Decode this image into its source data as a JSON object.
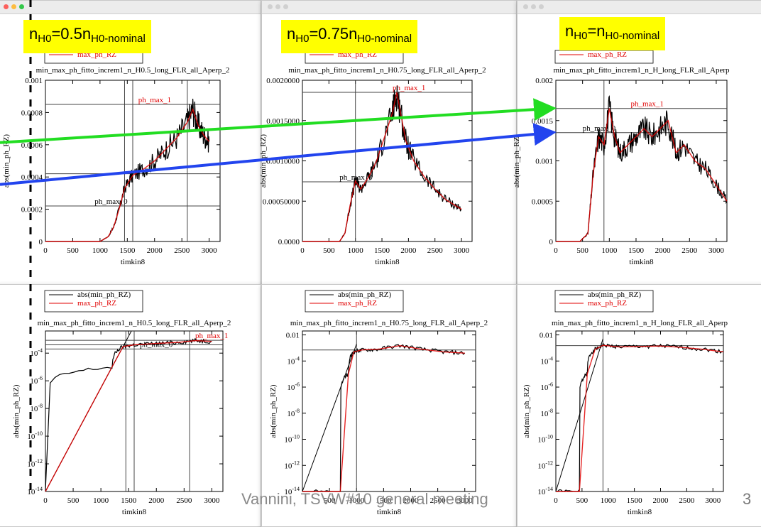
{
  "footer": {
    "text": "Vannini, TSVW#10 general meeting",
    "page": "3"
  },
  "highlights": [
    {
      "pre": "n",
      "sub1": "H0",
      "mid": "=0.5n",
      "sub2": "H0-nominal"
    },
    {
      "pre": "n",
      "sub1": "H0",
      "mid": "=0.75n",
      "sub2": "H0-nominal"
    },
    {
      "pre": "n",
      "sub1": "H0",
      "mid": "=n",
      "sub2": "H0-nominal"
    }
  ],
  "chart_data": [
    {
      "type": "line",
      "title": "min_max_ph_fitto_increm1_n_H0.5_long_FLR_all_Aperp_2",
      "xlabel": "timkin8",
      "ylabel": "abs(min_ph_RZ)",
      "xlim": [
        0,
        3200
      ],
      "ylim": [
        0,
        0.001
      ],
      "xticks": [
        0,
        500,
        1000,
        1500,
        2000,
        2500,
        3000
      ],
      "yticks": [
        0,
        0.0002,
        0.0004,
        0.0006,
        0.0008,
        0.001
      ],
      "ytick_labels": [
        "0",
        "0.0002",
        "0.0004",
        "0.0006",
        "0.0008",
        "0.001"
      ],
      "legend": [
        "max_ph_RZ"
      ],
      "series": [
        {
          "name": "max_ph_RZ",
          "x": [
            0,
            1000,
            1150,
            1250,
            1350,
            1450,
            1600,
            1800,
            2000,
            2200,
            2400,
            2600,
            2700,
            2800,
            2900,
            3000
          ],
          "y": [
            0,
            0,
            3e-05,
            9e-05,
            0.0002,
            0.00033,
            0.00041,
            0.00045,
            0.0005,
            0.00057,
            0.00064,
            0.00074,
            0.00082,
            0.00072,
            0.00066,
            0.00062
          ]
        }
      ],
      "hlines": [
        {
          "label": "ph_max_1",
          "y": 0.00085
        },
        {
          "label": "",
          "y": 0.00042
        },
        {
          "label": "ph_max_0",
          "y": 0.00022
        }
      ],
      "vlines": [
        1450,
        1600,
        2600
      ]
    },
    {
      "type": "line",
      "title": "min_max_ph_fitto_increm1_n_H0.75_long_FLR_all_Aperp_2",
      "xlabel": "timkin8",
      "ylabel": "abs(min_ph_RZ)",
      "xlim": [
        0,
        3200
      ],
      "ylim": [
        0,
        0.002
      ],
      "xticks": [
        0,
        500,
        1000,
        1500,
        2000,
        2500,
        3000
      ],
      "yticks": [
        0,
        0.0005,
        0.001,
        0.0015,
        0.002
      ],
      "ytick_labels": [
        "0.0000",
        "0.00050000",
        "0.0010000",
        "0.0015000",
        "0.0020000"
      ],
      "legend": [
        "max_ph_RZ"
      ],
      "series": [
        {
          "name": "max_ph_RZ",
          "x": [
            0,
            700,
            800,
            900,
            1000,
            1100,
            1250,
            1400,
            1550,
            1700,
            1780,
            1850,
            1950,
            2100,
            2300,
            2500,
            2700,
            2900,
            3000
          ],
          "y": [
            0,
            0,
            0.0001,
            0.00045,
            0.00075,
            0.00065,
            0.0008,
            0.001,
            0.0013,
            0.0016,
            0.00185,
            0.0016,
            0.00125,
            0.001,
            0.0008,
            0.00065,
            0.00052,
            0.00044,
            0.0004
          ]
        }
      ],
      "hlines": [
        {
          "label": "ph_max_1",
          "y": 0.00185
        },
        {
          "label": "ph_max_0",
          "y": 0.00074
        }
      ],
      "vlines": [
        1000
      ]
    },
    {
      "type": "line",
      "title": "min_max_ph_fitto_increm1_n_H_long_FLR_all_Aperp",
      "xlabel": "timkin8",
      "ylabel": "abs(min_ph_RZ)",
      "xlim": [
        0,
        3200
      ],
      "ylim": [
        0,
        0.002
      ],
      "xticks": [
        0,
        500,
        1000,
        1500,
        2000,
        2500,
        3000
      ],
      "yticks": [
        0,
        0.0005,
        0.001,
        0.0015,
        0.002
      ],
      "ytick_labels": [
        "0",
        "0.0005",
        "0.001",
        "0.0015",
        "0.002"
      ],
      "legend": [
        "max_ph_RZ"
      ],
      "series": [
        {
          "name": "max_ph_RZ",
          "x": [
            0,
            450,
            600,
            700,
            800,
            900,
            1000,
            1100,
            1200,
            1350,
            1500,
            1650,
            1800,
            1950,
            2100,
            2250,
            2400,
            2600,
            2800,
            3000,
            3200
          ],
          "y": [
            0,
            0,
            0.0001,
            0.00085,
            0.0013,
            0.0012,
            0.00165,
            0.0013,
            0.0011,
            0.0012,
            0.0013,
            0.0014,
            0.0013,
            0.0014,
            0.0015,
            0.0011,
            0.0012,
            0.001,
            0.0009,
            0.0007,
            0.0005
          ]
        }
      ],
      "hlines": [
        {
          "label": "ph_max_1",
          "y": 0.00165
        },
        {
          "label": "ph_max_0",
          "y": 0.00135
        }
      ],
      "vlines": [
        900
      ]
    },
    {
      "type": "line",
      "yscale": "log",
      "title": "min_max_ph_fitto_increm1_n_H0.5_long_FLR_all_Aperp_2",
      "xlabel": "timkin8",
      "ylabel": "abs(min_ph_RZ)",
      "xlim": [
        0,
        3200
      ],
      "ylim": [
        1e-14,
        0.004
      ],
      "xticks": [
        0,
        500,
        1000,
        1500,
        2000,
        2500,
        3000
      ],
      "xtick_labels": [
        "0",
        "500",
        "1000",
        "1500",
        "2000",
        "2500",
        "3000"
      ],
      "yticks": [
        1e-14,
        1e-12,
        1e-10,
        1e-08,
        1e-06,
        0.0001
      ],
      "ytick_labels": [
        "10^-14",
        "10^-12",
        "10^-10",
        "10^-8",
        "10^-6",
        "10^-4"
      ],
      "legend": [
        "abs(min_ph_RZ)",
        "max_ph_RZ"
      ],
      "series": [
        {
          "name": "max_ph_RZ",
          "x": [
            0,
            1200,
            1400,
            1600,
            2000,
            2400,
            2700,
            3000
          ],
          "y": [
            1e-14,
            1e-05,
            0.0003,
            0.0004,
            0.0005,
            0.0006,
            0.0008,
            0.0007
          ]
        }
      ],
      "fit_line": {
        "x": [
          0,
          1550
        ],
        "y": [
          1e-14,
          0.004
        ]
      },
      "hlines": [
        {
          "label": "ph_max_1",
          "y": 0.00085
        },
        {
          "label": "",
          "y": 0.0004
        },
        {
          "label": "ph_max_0",
          "y": 0.0002
        }
      ],
      "vlines": [
        1450,
        1600,
        2600
      ]
    },
    {
      "type": "line",
      "yscale": "log",
      "title": "min_max_ph_fitto_increm1_n_H0.75_long_FLR_all_Aperp_2",
      "xlabel": "timkin8",
      "ylabel": "abs(min_ph_RZ)",
      "xlim": [
        0,
        3200
      ],
      "ylim": [
        1e-14,
        0.02
      ],
      "xticks": [
        0,
        500,
        1000,
        1500,
        2000,
        2500,
        3000
      ],
      "xtick_labels": [
        "",
        "500",
        "1000",
        "1500",
        "2000",
        "2500",
        "3000"
      ],
      "yticks": [
        1e-14,
        1e-12,
        1e-10,
        1e-08,
        1e-06,
        0.0001,
        0.01
      ],
      "ytick_labels": [
        "10^-14",
        "10^-12",
        "10^-10",
        "10^-8",
        "10^-6",
        "10^-4",
        "0.01"
      ],
      "legend": [
        "abs(min_ph_RZ)",
        "max_ph_RZ"
      ],
      "series": [
        {
          "name": "max_ph_RZ",
          "x": [
            0,
            700,
            850,
            950,
            1100,
            1400,
            1800,
            2200,
            2600,
            3000
          ],
          "y": [
            1e-14,
            1e-14,
            1e-05,
            0.0005,
            0.0007,
            0.0008,
            0.0015,
            0.0008,
            0.0005,
            0.0004
          ]
        }
      ],
      "fit_line": {
        "x": [
          0,
          1000
        ],
        "y": [
          1e-14,
          0.002
        ]
      },
      "hlines": [
        {
          "label": "",
          "y": 0.0007
        }
      ],
      "vlines": [
        1000
      ]
    },
    {
      "type": "line",
      "yscale": "log",
      "title": "min_max_ph_fitto_increm1_n_H_long_FLR_all_Aperp",
      "xlabel": "timkin8",
      "ylabel": "abs(min_ph_RZ)",
      "xlim": [
        0,
        3200
      ],
      "ylim": [
        1e-14,
        0.02
      ],
      "xticks": [
        0,
        500,
        1000,
        1500,
        2000,
        2500,
        3000
      ],
      "xtick_labels": [
        "0",
        "500",
        "1000",
        "1500",
        "2000",
        "2500",
        "3000"
      ],
      "yticks": [
        1e-14,
        1e-12,
        1e-10,
        1e-08,
        1e-06,
        0.0001,
        0.01
      ],
      "ytick_labels": [
        "10^-14",
        "10^-12",
        "10^-10",
        "10^-8",
        "10^-6",
        "10^-4",
        "0.01"
      ],
      "legend": [
        "abs(min_ph_RZ)",
        "max_ph_RZ"
      ],
      "series": [
        {
          "name": "max_ph_RZ",
          "x": [
            0,
            450,
            600,
            750,
            900,
            1200,
            1600,
            2000,
            2400,
            2800,
            3200
          ],
          "y": [
            1e-14,
            1e-14,
            1e-05,
            0.0008,
            0.0016,
            0.0012,
            0.0013,
            0.0014,
            0.0011,
            0.0008,
            0.0005
          ]
        }
      ],
      "fit_line": {
        "x": [
          0,
          900
        ],
        "y": [
          1e-14,
          0.005
        ]
      },
      "hlines": [
        {
          "label": "",
          "y": 0.0015
        }
      ],
      "vlines": [
        900
      ]
    }
  ],
  "arrows": [
    {
      "color": "#22dd22",
      "from_chart": 0,
      "from_y": 0.00064,
      "to_chart": 2,
      "to_y": 0.00165
    },
    {
      "color": "#2244ee",
      "from_chart": 0,
      "from_y": 0.00038,
      "to_chart": 2,
      "to_y": 0.00135
    }
  ]
}
